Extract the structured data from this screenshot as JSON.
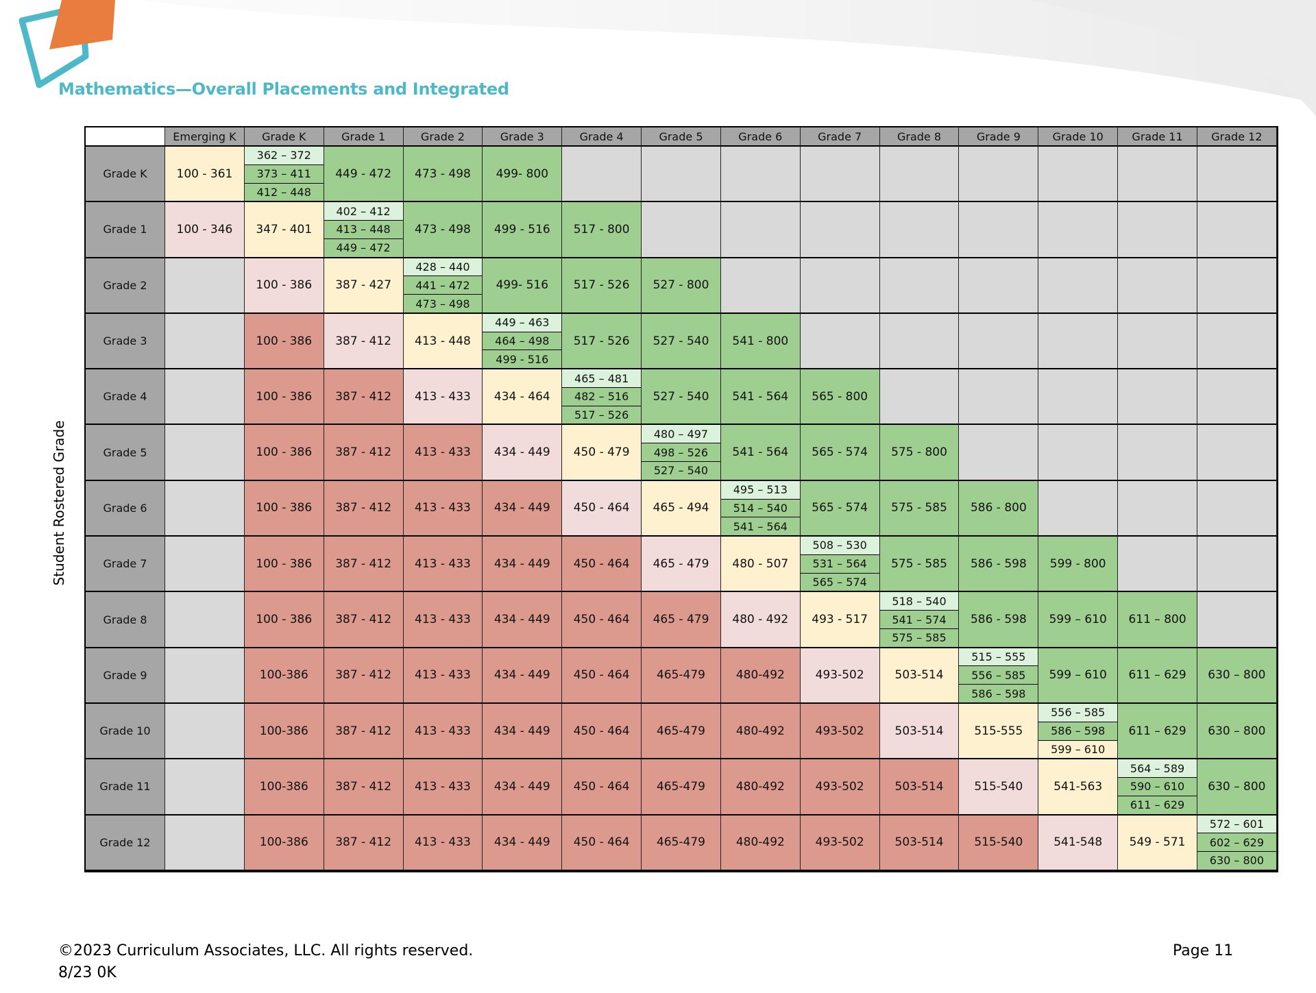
{
  "title": "Mathematics—Overall Placements and Integrated",
  "side_label": "Student Rostered Grade",
  "colors": {
    "red": "#dc9a8e",
    "pink": "#f2dcdb",
    "yellow": "#fdf1cf",
    "green": "#9fcf90",
    "lightgreen": "#ddf2dd",
    "gray": "#d9d9d9",
    "header": "#a6a6a6"
  },
  "columns": [
    "Emerging K",
    "Grade K",
    "Grade 1",
    "Grade 2",
    "Grade 3",
    "Grade 4",
    "Grade 5",
    "Grade 6",
    "Grade 7",
    "Grade 8",
    "Grade 9",
    "Grade 10",
    "Grade 11",
    "Grade 12"
  ],
  "rows": [
    {
      "label": "Grade K",
      "cells": [
        {
          "c": "yellow",
          "v": "100 - 361"
        },
        {
          "c": "split",
          "v": [
            "362 – 372",
            "373 – 411",
            "412 – 448"
          ],
          "sc": [
            "lightgreen",
            "green",
            "green"
          ]
        },
        {
          "c": "green",
          "v": "449 - 472"
        },
        {
          "c": "green",
          "v": "473 - 498"
        },
        {
          "c": "green",
          "v": "499- 800"
        },
        {
          "c": "gray",
          "v": ""
        },
        {
          "c": "gray",
          "v": ""
        },
        {
          "c": "gray",
          "v": ""
        },
        {
          "c": "gray",
          "v": ""
        },
        {
          "c": "gray",
          "v": ""
        },
        {
          "c": "gray",
          "v": ""
        },
        {
          "c": "gray",
          "v": ""
        },
        {
          "c": "gray",
          "v": ""
        },
        {
          "c": "gray",
          "v": ""
        }
      ]
    },
    {
      "label": "Grade 1",
      "cells": [
        {
          "c": "pink",
          "v": "100 - 346"
        },
        {
          "c": "yellow",
          "v": "347 - 401"
        },
        {
          "c": "split",
          "v": [
            "402 – 412",
            "413 – 448",
            "449 – 472"
          ],
          "sc": [
            "lightgreen",
            "green",
            "green"
          ]
        },
        {
          "c": "green",
          "v": "473 - 498"
        },
        {
          "c": "green",
          "v": "499 - 516"
        },
        {
          "c": "green",
          "v": "517 - 800"
        },
        {
          "c": "gray",
          "v": ""
        },
        {
          "c": "gray",
          "v": ""
        },
        {
          "c": "gray",
          "v": ""
        },
        {
          "c": "gray",
          "v": ""
        },
        {
          "c": "gray",
          "v": ""
        },
        {
          "c": "gray",
          "v": ""
        },
        {
          "c": "gray",
          "v": ""
        },
        {
          "c": "gray",
          "v": ""
        }
      ]
    },
    {
      "label": "Grade 2",
      "cells": [
        {
          "c": "gray",
          "v": ""
        },
        {
          "c": "pink",
          "v": "100 - 386"
        },
        {
          "c": "yellow",
          "v": "387 - 427"
        },
        {
          "c": "split",
          "v": [
            "428 – 440",
            "441 – 472",
            "473 – 498"
          ],
          "sc": [
            "lightgreen",
            "green",
            "green"
          ]
        },
        {
          "c": "green",
          "v": "499- 516"
        },
        {
          "c": "green",
          "v": "517 - 526"
        },
        {
          "c": "green",
          "v": "527 - 800"
        },
        {
          "c": "gray",
          "v": ""
        },
        {
          "c": "gray",
          "v": ""
        },
        {
          "c": "gray",
          "v": ""
        },
        {
          "c": "gray",
          "v": ""
        },
        {
          "c": "gray",
          "v": ""
        },
        {
          "c": "gray",
          "v": ""
        },
        {
          "c": "gray",
          "v": ""
        }
      ]
    },
    {
      "label": "Grade 3",
      "cells": [
        {
          "c": "gray",
          "v": ""
        },
        {
          "c": "red",
          "v": "100 - 386"
        },
        {
          "c": "pink",
          "v": "387 - 412"
        },
        {
          "c": "yellow",
          "v": "413 - 448"
        },
        {
          "c": "split",
          "v": [
            "449 – 463",
            "464 – 498",
            "499 - 516"
          ],
          "sc": [
            "lightgreen",
            "green",
            "green"
          ]
        },
        {
          "c": "green",
          "v": "517 - 526"
        },
        {
          "c": "green",
          "v": "527 - 540"
        },
        {
          "c": "green",
          "v": "541 - 800"
        },
        {
          "c": "gray",
          "v": ""
        },
        {
          "c": "gray",
          "v": ""
        },
        {
          "c": "gray",
          "v": ""
        },
        {
          "c": "gray",
          "v": ""
        },
        {
          "c": "gray",
          "v": ""
        },
        {
          "c": "gray",
          "v": ""
        }
      ]
    },
    {
      "label": "Grade 4",
      "cells": [
        {
          "c": "gray",
          "v": ""
        },
        {
          "c": "red",
          "v": "100 - 386"
        },
        {
          "c": "red",
          "v": "387 - 412"
        },
        {
          "c": "pink",
          "v": "413 - 433"
        },
        {
          "c": "yellow",
          "v": "434 - 464"
        },
        {
          "c": "split",
          "v": [
            "465 – 481",
            "482 – 516",
            "517 – 526"
          ],
          "sc": [
            "lightgreen",
            "green",
            "green"
          ]
        },
        {
          "c": "green",
          "v": "527 - 540"
        },
        {
          "c": "green",
          "v": "541 - 564"
        },
        {
          "c": "green",
          "v": "565 - 800"
        },
        {
          "c": "gray",
          "v": ""
        },
        {
          "c": "gray",
          "v": ""
        },
        {
          "c": "gray",
          "v": ""
        },
        {
          "c": "gray",
          "v": ""
        },
        {
          "c": "gray",
          "v": ""
        }
      ]
    },
    {
      "label": "Grade 5",
      "cells": [
        {
          "c": "gray",
          "v": ""
        },
        {
          "c": "red",
          "v": "100 - 386"
        },
        {
          "c": "red",
          "v": "387 - 412"
        },
        {
          "c": "red",
          "v": "413 - 433"
        },
        {
          "c": "pink",
          "v": "434 - 449"
        },
        {
          "c": "yellow",
          "v": "450 - 479"
        },
        {
          "c": "split",
          "v": [
            "480 – 497",
            "498 – 526",
            "527 – 540"
          ],
          "sc": [
            "lightgreen",
            "green",
            "green"
          ]
        },
        {
          "c": "green",
          "v": "541 - 564"
        },
        {
          "c": "green",
          "v": "565 - 574"
        },
        {
          "c": "green",
          "v": "575 - 800"
        },
        {
          "c": "gray",
          "v": ""
        },
        {
          "c": "gray",
          "v": ""
        },
        {
          "c": "gray",
          "v": ""
        },
        {
          "c": "gray",
          "v": ""
        }
      ]
    },
    {
      "label": "Grade 6",
      "cells": [
        {
          "c": "gray",
          "v": ""
        },
        {
          "c": "red",
          "v": "100 - 386"
        },
        {
          "c": "red",
          "v": "387 - 412"
        },
        {
          "c": "red",
          "v": "413 - 433"
        },
        {
          "c": "red",
          "v": "434 - 449"
        },
        {
          "c": "pink",
          "v": "450 - 464"
        },
        {
          "c": "yellow",
          "v": "465 - 494"
        },
        {
          "c": "split",
          "v": [
            "495 – 513",
            "514 – 540",
            "541 – 564"
          ],
          "sc": [
            "lightgreen",
            "green",
            "green"
          ]
        },
        {
          "c": "green",
          "v": "565 - 574"
        },
        {
          "c": "green",
          "v": "575 - 585"
        },
        {
          "c": "green",
          "v": "586 - 800"
        },
        {
          "c": "gray",
          "v": ""
        },
        {
          "c": "gray",
          "v": ""
        },
        {
          "c": "gray",
          "v": ""
        }
      ]
    },
    {
      "label": "Grade 7",
      "cells": [
        {
          "c": "gray",
          "v": ""
        },
        {
          "c": "red",
          "v": "100 - 386"
        },
        {
          "c": "red",
          "v": "387 - 412"
        },
        {
          "c": "red",
          "v": "413 - 433"
        },
        {
          "c": "red",
          "v": "434 - 449"
        },
        {
          "c": "red",
          "v": "450 - 464"
        },
        {
          "c": "pink",
          "v": "465 - 479"
        },
        {
          "c": "yellow",
          "v": "480 - 507"
        },
        {
          "c": "split",
          "v": [
            "508 – 530",
            "531 – 564",
            "565 – 574"
          ],
          "sc": [
            "lightgreen",
            "green",
            "green"
          ]
        },
        {
          "c": "green",
          "v": "575 - 585"
        },
        {
          "c": "green",
          "v": "586 - 598"
        },
        {
          "c": "green",
          "v": "599 - 800"
        },
        {
          "c": "gray",
          "v": ""
        },
        {
          "c": "gray",
          "v": ""
        }
      ]
    },
    {
      "label": "Grade 8",
      "cells": [
        {
          "c": "gray",
          "v": ""
        },
        {
          "c": "red",
          "v": "100 - 386"
        },
        {
          "c": "red",
          "v": "387 - 412"
        },
        {
          "c": "red",
          "v": "413 - 433"
        },
        {
          "c": "red",
          "v": "434 - 449"
        },
        {
          "c": "red",
          "v": "450 - 464"
        },
        {
          "c": "red",
          "v": "465 - 479"
        },
        {
          "c": "pink",
          "v": "480 - 492"
        },
        {
          "c": "yellow",
          "v": "493 - 517"
        },
        {
          "c": "split",
          "v": [
            "518 – 540",
            "541 – 574",
            "575 – 585"
          ],
          "sc": [
            "lightgreen",
            "green",
            "green"
          ]
        },
        {
          "c": "green",
          "v": "586 - 598"
        },
        {
          "c": "green",
          "v": "599 – 610"
        },
        {
          "c": "green",
          "v": "611 – 800"
        },
        {
          "c": "gray",
          "v": ""
        }
      ]
    },
    {
      "label": "Grade 9",
      "cells": [
        {
          "c": "gray",
          "v": ""
        },
        {
          "c": "red",
          "v": "100-386"
        },
        {
          "c": "red",
          "v": "387 - 412"
        },
        {
          "c": "red",
          "v": "413 - 433"
        },
        {
          "c": "red",
          "v": "434 - 449"
        },
        {
          "c": "red",
          "v": "450 - 464"
        },
        {
          "c": "red",
          "v": "465-479"
        },
        {
          "c": "red",
          "v": "480-492"
        },
        {
          "c": "pink",
          "v": "493-502"
        },
        {
          "c": "yellow",
          "v": "503-514"
        },
        {
          "c": "split",
          "v": [
            "515 – 555",
            "556 – 585",
            "586 – 598"
          ],
          "sc": [
            "lightgreen",
            "green",
            "green"
          ]
        },
        {
          "c": "green",
          "v": "599 – 610"
        },
        {
          "c": "green",
          "v": "611 – 629"
        },
        {
          "c": "green",
          "v": "630 – 800"
        }
      ]
    },
    {
      "label": "Grade 10",
      "cells": [
        {
          "c": "gray",
          "v": ""
        },
        {
          "c": "red",
          "v": "100-386"
        },
        {
          "c": "red",
          "v": "387 - 412"
        },
        {
          "c": "red",
          "v": "413 - 433"
        },
        {
          "c": "red",
          "v": "434 - 449"
        },
        {
          "c": "red",
          "v": "450 - 464"
        },
        {
          "c": "red",
          "v": "465-479"
        },
        {
          "c": "red",
          "v": "480-492"
        },
        {
          "c": "red",
          "v": "493-502"
        },
        {
          "c": "pink",
          "v": "503-514"
        },
        {
          "c": "yellow",
          "v": "515-555"
        },
        {
          "c": "split",
          "v": [
            "556 – 585",
            "586 – 598",
            "599 – 610"
          ],
          "sc": [
            "lightgreen",
            "green",
            "yellow"
          ]
        },
        {
          "c": "green",
          "v": "611 – 629"
        },
        {
          "c": "green",
          "v": "630 – 800"
        }
      ]
    },
    {
      "label": "Grade 11",
      "cells": [
        {
          "c": "gray",
          "v": ""
        },
        {
          "c": "red",
          "v": "100-386"
        },
        {
          "c": "red",
          "v": "387 - 412"
        },
        {
          "c": "red",
          "v": "413 - 433"
        },
        {
          "c": "red",
          "v": "434 - 449"
        },
        {
          "c": "red",
          "v": "450 - 464"
        },
        {
          "c": "red",
          "v": "465-479"
        },
        {
          "c": "red",
          "v": "480-492"
        },
        {
          "c": "red",
          "v": "493-502"
        },
        {
          "c": "red",
          "v": "503-514"
        },
        {
          "c": "pink",
          "v": "515-540"
        },
        {
          "c": "yellow",
          "v": "541-563"
        },
        {
          "c": "split",
          "v": [
            "564 – 589",
            "590 – 610",
            "611 – 629"
          ],
          "sc": [
            "lightgreen",
            "green",
            "green"
          ]
        },
        {
          "c": "green",
          "v": "630 – 800"
        }
      ]
    },
    {
      "label": "Grade 12",
      "cells": [
        {
          "c": "gray",
          "v": ""
        },
        {
          "c": "red",
          "v": "100-386"
        },
        {
          "c": "red",
          "v": "387 - 412"
        },
        {
          "c": "red",
          "v": "413 - 433"
        },
        {
          "c": "red",
          "v": "434 - 449"
        },
        {
          "c": "red",
          "v": "450 - 464"
        },
        {
          "c": "red",
          "v": "465-479"
        },
        {
          "c": "red",
          "v": "480-492"
        },
        {
          "c": "red",
          "v": "493-502"
        },
        {
          "c": "red",
          "v": "503-514"
        },
        {
          "c": "red",
          "v": "515-540"
        },
        {
          "c": "pink",
          "v": "541-548"
        },
        {
          "c": "yellow",
          "v": "549 - 571"
        },
        {
          "c": "split",
          "v": [
            "572 – 601",
            "602 – 629",
            "630 – 800"
          ],
          "sc": [
            "lightgreen",
            "green",
            "green"
          ]
        }
      ]
    }
  ],
  "footer": {
    "copyright": "©2023 Curriculum Associates, LLC. All rights reserved.",
    "code": "8/23 0K",
    "page": "Page 11"
  }
}
